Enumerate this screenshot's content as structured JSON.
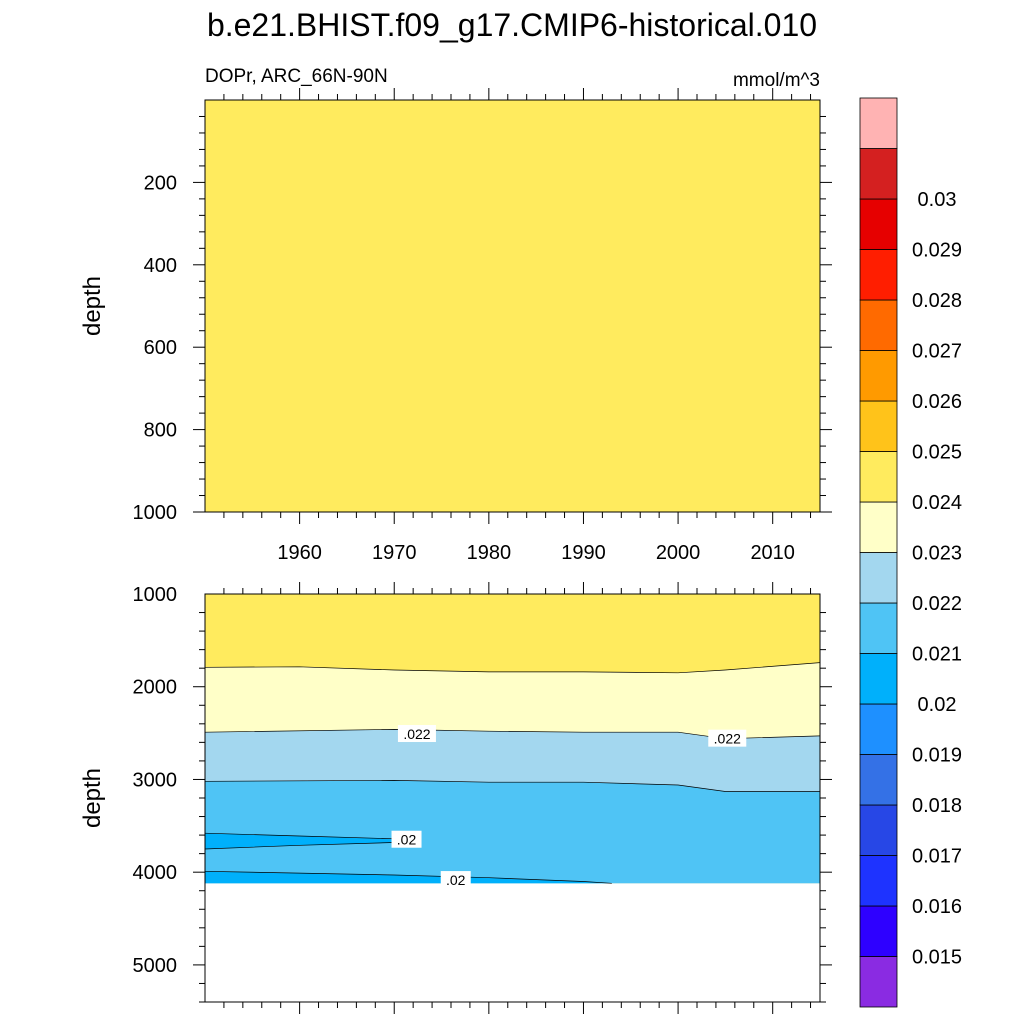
{
  "title": "b.e21.BHIST.f09_g17.CMIP6-historical.010",
  "colors": {
    "background": "#ffffff",
    "axis": "#000000",
    "contour_line": "#000000",
    "label_box": "#ffffff"
  },
  "chart_data": [
    {
      "id": "upper-panel",
      "type": "contour",
      "variable_label": "DOPr, ARC_66N-90N",
      "units_label": "mmol/m^3",
      "ylabel": "depth",
      "xlim": [
        1950,
        2015
      ],
      "ylim": [
        0,
        1000
      ],
      "y_inverted": true,
      "x_tick_labels": [
        "1960",
        "1970",
        "1980",
        "1990",
        "2000",
        "2010"
      ],
      "x_ticks": [
        1960,
        1970,
        1980,
        1990,
        2000,
        2010
      ],
      "y_tick_labels": [
        "200",
        "400",
        "600",
        "800",
        "1000"
      ],
      "y_ticks": [
        200,
        400,
        600,
        800,
        1000
      ],
      "fill_band": "0.023-0.024",
      "fill_color": "#ffeb5e",
      "regions": []
    },
    {
      "id": "lower-panel",
      "type": "contour",
      "ylabel": "depth",
      "xlim": [
        1950,
        2015
      ],
      "ylim": [
        1000,
        5400
      ],
      "y_inverted": true,
      "y_tick_labels": [
        "1000",
        "2000",
        "3000",
        "4000",
        "5000"
      ],
      "y_ticks": [
        1000,
        2000,
        3000,
        4000,
        5000
      ],
      "bottom_depth": 4120,
      "background_band": "0.023-0.024",
      "background_color": "#ffeb5e",
      "regions": [
        {
          "name": "band-0.022-0.023",
          "color": "#ffffc8",
          "x": [
            1950,
            1960,
            1970,
            1980,
            1990,
            2000,
            2005,
            2015
          ],
          "top": [
            1790,
            1785,
            1820,
            1840,
            1840,
            1850,
            1820,
            1740
          ],
          "bottom": [
            4120,
            4120,
            4120,
            4120,
            4120,
            4120,
            4120,
            4120
          ]
        },
        {
          "name": "band-0.021-0.022",
          "color": "#a3d7ef",
          "x": [
            1950,
            1970,
            1980,
            1990,
            2000,
            2005,
            2015
          ],
          "top": [
            2490,
            2460,
            2480,
            2490,
            2490,
            2560,
            2530
          ],
          "bottom": [
            4120,
            4120,
            4120,
            4120,
            4120,
            4120,
            4120
          ]
        },
        {
          "name": "band-0.020-0.021",
          "color": "#4fc4f5",
          "x": [
            1950,
            1970,
            1980,
            1990,
            2000,
            2005,
            2015
          ],
          "top": [
            3020,
            3010,
            3030,
            3030,
            3060,
            3130,
            3130
          ],
          "bottom": [
            4120,
            4120,
            4120,
            4120,
            4120,
            4120,
            4120
          ]
        },
        {
          "name": "band-0.019-0.020-upper",
          "color": "#00b0fb",
          "x": [
            1950,
            1960,
            1970,
            1971
          ],
          "top": [
            3580,
            3610,
            3640,
            3660
          ],
          "bottom": [
            3750,
            3710,
            3680,
            3660
          ]
        },
        {
          "name": "band-0.019-0.020-lower",
          "color": "#00b0fb",
          "x": [
            1950,
            1960,
            1970,
            1980,
            1990,
            1993,
            2015
          ],
          "top": [
            3990,
            4010,
            4030,
            4060,
            4100,
            4120,
            4120
          ],
          "bottom": [
            4120,
            4120,
            4120,
            4120,
            4120,
            4120,
            4120
          ]
        }
      ],
      "contour_lines": [
        {
          "x": [
            1950,
            1960,
            1970,
            1980,
            1990,
            2000,
            2005,
            2015
          ],
          "y": [
            1790,
            1785,
            1820,
            1840,
            1840,
            1850,
            1820,
            1740
          ]
        },
        {
          "x": [
            1950,
            1970,
            1980,
            1990,
            2000,
            2005,
            2015
          ],
          "y": [
            2490,
            2460,
            2480,
            2490,
            2490,
            2560,
            2530
          ]
        },
        {
          "x": [
            1950,
            1970,
            1980,
            1990,
            2000,
            2005,
            2015
          ],
          "y": [
            3020,
            3010,
            3030,
            3030,
            3060,
            3130,
            3130
          ]
        },
        {
          "x": [
            1950,
            1960,
            1970,
            1971
          ],
          "y": [
            3580,
            3610,
            3640,
            3660
          ]
        },
        {
          "x": [
            1950,
            1960,
            1970,
            1971
          ],
          "y": [
            3750,
            3710,
            3680,
            3660
          ]
        },
        {
          "x": [
            1950,
            1960,
            1970,
            1980,
            1990,
            1993
          ],
          "y": [
            3990,
            4010,
            4030,
            4060,
            4100,
            4120
          ]
        }
      ],
      "contour_labels": [
        {
          "text": ".022",
          "x": 1972.4,
          "y": 2510
        },
        {
          "text": ".022",
          "x": 2005.2,
          "y": 2560
        },
        {
          "text": ".02",
          "x": 1971.3,
          "y": 3650
        },
        {
          "text": ".02",
          "x": 1976.5,
          "y": 4085
        }
      ]
    },
    {
      "id": "colorbar",
      "type": "colorbar",
      "levels": [
        "0.015",
        "0.016",
        "0.017",
        "0.018",
        "0.019",
        "0.02",
        "0.021",
        "0.022",
        "0.023",
        "0.024",
        "0.025",
        "0.026",
        "0.027",
        "0.028",
        "0.029",
        "0.03"
      ],
      "colors": [
        "#8a2be2",
        "#2e00ff",
        "#1e33ff",
        "#2747e6",
        "#3471e6",
        "#1e90ff",
        "#00b0fb",
        "#4fc4f5",
        "#a3d7ef",
        "#ffffc8",
        "#ffeb5e",
        "#ffc31a",
        "#ff9a00",
        "#ff6a00",
        "#ff1e00",
        "#e60000",
        "#d42020",
        "#ffb3b3"
      ]
    }
  ]
}
